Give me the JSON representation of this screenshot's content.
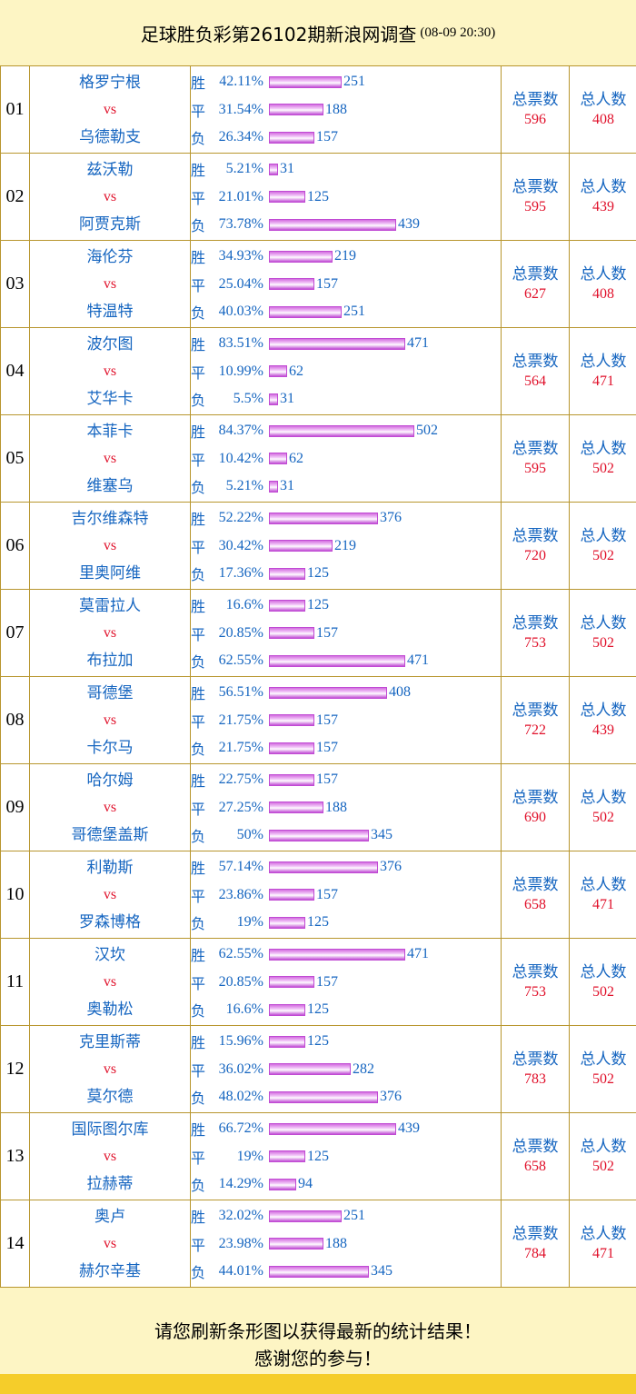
{
  "header": {
    "title": "足球胜负彩第26102期新浪网调查",
    "date": "(08-09 20:30)"
  },
  "labels": {
    "vs": "vs",
    "win": "胜",
    "draw": "平",
    "lose": "负",
    "total_votes": "总票数",
    "total_people": "总人数"
  },
  "colors": {
    "team": "#1565c0",
    "vs": "#e0102a",
    "bar": "#d46ee0",
    "border": "#b8962e",
    "background": "#fdf5c4",
    "bottom_bar": "#f5cd2a"
  },
  "matches": [
    {
      "num": "01",
      "home": "格罗宁根",
      "away": "乌德勒支",
      "win": {
        "pct": "42.11%",
        "count": 251
      },
      "draw": {
        "pct": "31.54%",
        "count": 188
      },
      "lose": {
        "pct": "26.34%",
        "count": 157
      },
      "total_votes": "596",
      "total_people": "408"
    },
    {
      "num": "02",
      "home": "兹沃勒",
      "away": "阿贾克斯",
      "win": {
        "pct": "5.21%",
        "count": 31
      },
      "draw": {
        "pct": "21.01%",
        "count": 125
      },
      "lose": {
        "pct": "73.78%",
        "count": 439
      },
      "total_votes": "595",
      "total_people": "439"
    },
    {
      "num": "03",
      "home": "海伦芬",
      "away": "特温特",
      "win": {
        "pct": "34.93%",
        "count": 219
      },
      "draw": {
        "pct": "25.04%",
        "count": 157
      },
      "lose": {
        "pct": "40.03%",
        "count": 251
      },
      "total_votes": "627",
      "total_people": "408"
    },
    {
      "num": "04",
      "home": "波尔图",
      "away": "艾华卡",
      "win": {
        "pct": "83.51%",
        "count": 471
      },
      "draw": {
        "pct": "10.99%",
        "count": 62
      },
      "lose": {
        "pct": "5.5%",
        "count": 31
      },
      "total_votes": "564",
      "total_people": "471"
    },
    {
      "num": "05",
      "home": "本菲卡",
      "away": "维塞乌",
      "win": {
        "pct": "84.37%",
        "count": 502
      },
      "draw": {
        "pct": "10.42%",
        "count": 62
      },
      "lose": {
        "pct": "5.21%",
        "count": 31
      },
      "total_votes": "595",
      "total_people": "502"
    },
    {
      "num": "06",
      "home": "吉尔维森特",
      "away": "里奥阿维",
      "win": {
        "pct": "52.22%",
        "count": 376
      },
      "draw": {
        "pct": "30.42%",
        "count": 219
      },
      "lose": {
        "pct": "17.36%",
        "count": 125
      },
      "total_votes": "720",
      "total_people": "502"
    },
    {
      "num": "07",
      "home": "莫雷拉人",
      "away": "布拉加",
      "win": {
        "pct": "16.6%",
        "count": 125
      },
      "draw": {
        "pct": "20.85%",
        "count": 157
      },
      "lose": {
        "pct": "62.55%",
        "count": 471
      },
      "total_votes": "753",
      "total_people": "502"
    },
    {
      "num": "08",
      "home": "哥德堡",
      "away": "卡尔马",
      "win": {
        "pct": "56.51%",
        "count": 408
      },
      "draw": {
        "pct": "21.75%",
        "count": 157
      },
      "lose": {
        "pct": "21.75%",
        "count": 157
      },
      "total_votes": "722",
      "total_people": "439"
    },
    {
      "num": "09",
      "home": "哈尔姆",
      "away": "哥德堡盖斯",
      "win": {
        "pct": "22.75%",
        "count": 157
      },
      "draw": {
        "pct": "27.25%",
        "count": 188
      },
      "lose": {
        "pct": "50%",
        "count": 345
      },
      "total_votes": "690",
      "total_people": "502"
    },
    {
      "num": "10",
      "home": "利勒斯",
      "away": "罗森博格",
      "win": {
        "pct": "57.14%",
        "count": 376
      },
      "draw": {
        "pct": "23.86%",
        "count": 157
      },
      "lose": {
        "pct": "19%",
        "count": 125
      },
      "total_votes": "658",
      "total_people": "471"
    },
    {
      "num": "11",
      "home": "汉坎",
      "away": "奥勒松",
      "win": {
        "pct": "62.55%",
        "count": 471
      },
      "draw": {
        "pct": "20.85%",
        "count": 157
      },
      "lose": {
        "pct": "16.6%",
        "count": 125
      },
      "total_votes": "753",
      "total_people": "502"
    },
    {
      "num": "12",
      "home": "克里斯蒂",
      "away": "莫尔德",
      "win": {
        "pct": "15.96%",
        "count": 125
      },
      "draw": {
        "pct": "36.02%",
        "count": 282
      },
      "lose": {
        "pct": "48.02%",
        "count": 376
      },
      "total_votes": "783",
      "total_people": "502"
    },
    {
      "num": "13",
      "home": "国际图尔库",
      "away": "拉赫蒂",
      "win": {
        "pct": "66.72%",
        "count": 439
      },
      "draw": {
        "pct": "19%",
        "count": 125
      },
      "lose": {
        "pct": "14.29%",
        "count": 94
      },
      "total_votes": "658",
      "total_people": "502"
    },
    {
      "num": "14",
      "home": "奥卢",
      "away": "赫尔辛基",
      "win": {
        "pct": "32.02%",
        "count": 251
      },
      "draw": {
        "pct": "23.98%",
        "count": 188
      },
      "lose": {
        "pct": "44.01%",
        "count": 345
      },
      "total_votes": "784",
      "total_people": "471"
    }
  ],
  "footer": {
    "line1": "请您刷新条形图以获得最新的统计结果！",
    "line2": "感谢您的参与！"
  }
}
